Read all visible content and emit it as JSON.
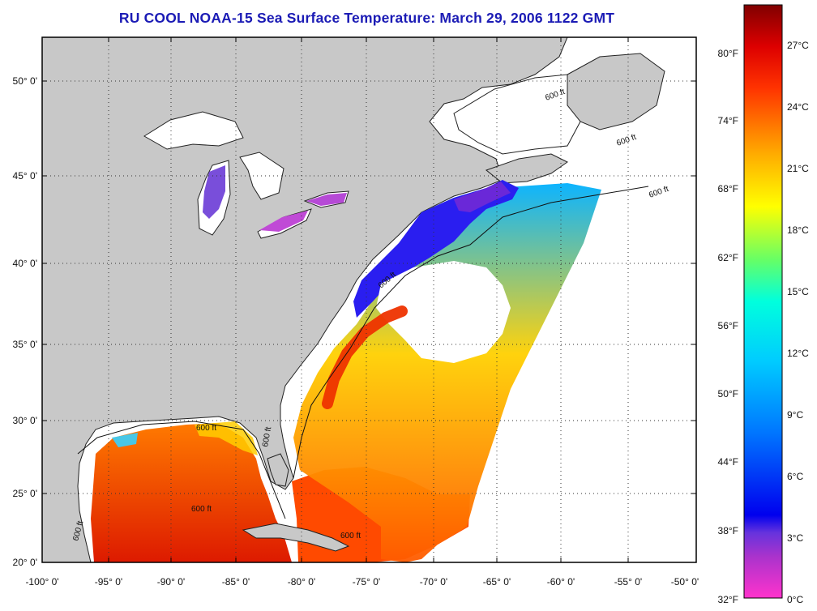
{
  "title": "RU COOL  NOAA-15  Sea Surface Temperature:  March 29, 2006 1122 GMT",
  "map": {
    "lon_labels": [
      "-100° 0'",
      "-95° 0'",
      "-90° 0'",
      "-85° 0'",
      "-80° 0'",
      "-75° 0'",
      "-70° 0'",
      "-65° 0'",
      "-60° 0'",
      "-55° 0'",
      "-50° 0'"
    ],
    "lat_labels": [
      "50° 0'",
      "45° 0'",
      "40° 0'",
      "35° 0'",
      "30° 0'",
      "25° 0'",
      "20° 0'"
    ],
    "isobath_labels": [
      "600 ft",
      "600 ft",
      "600 ft",
      "600 ft",
      "600 ft",
      "600 ft",
      "600 ft",
      "600 ft",
      "600 ft"
    ],
    "colors": {
      "land": "#c8c8c8",
      "lake": "#ffffff",
      "no_data": "#ffffff",
      "grid": "#222222"
    }
  },
  "colorbar": {
    "fahrenheit_labels": [
      "80°F",
      "74°F",
      "68°F",
      "62°F",
      "56°F",
      "50°F",
      "44°F",
      "38°F",
      "32°F"
    ],
    "celsius_labels": [
      "27°C",
      "24°C",
      "21°C",
      "18°C",
      "15°C",
      "12°C",
      "9°C",
      "6°C",
      "3°C",
      "0°C"
    ],
    "colors": [
      "#ff33cc",
      "#9933cc",
      "#6622ee",
      "#0000ff",
      "#0099ff",
      "#00ffff",
      "#66ff99",
      "#ffff00",
      "#ff9900",
      "#ff3300",
      "#cc0000",
      "#800000"
    ]
  }
}
